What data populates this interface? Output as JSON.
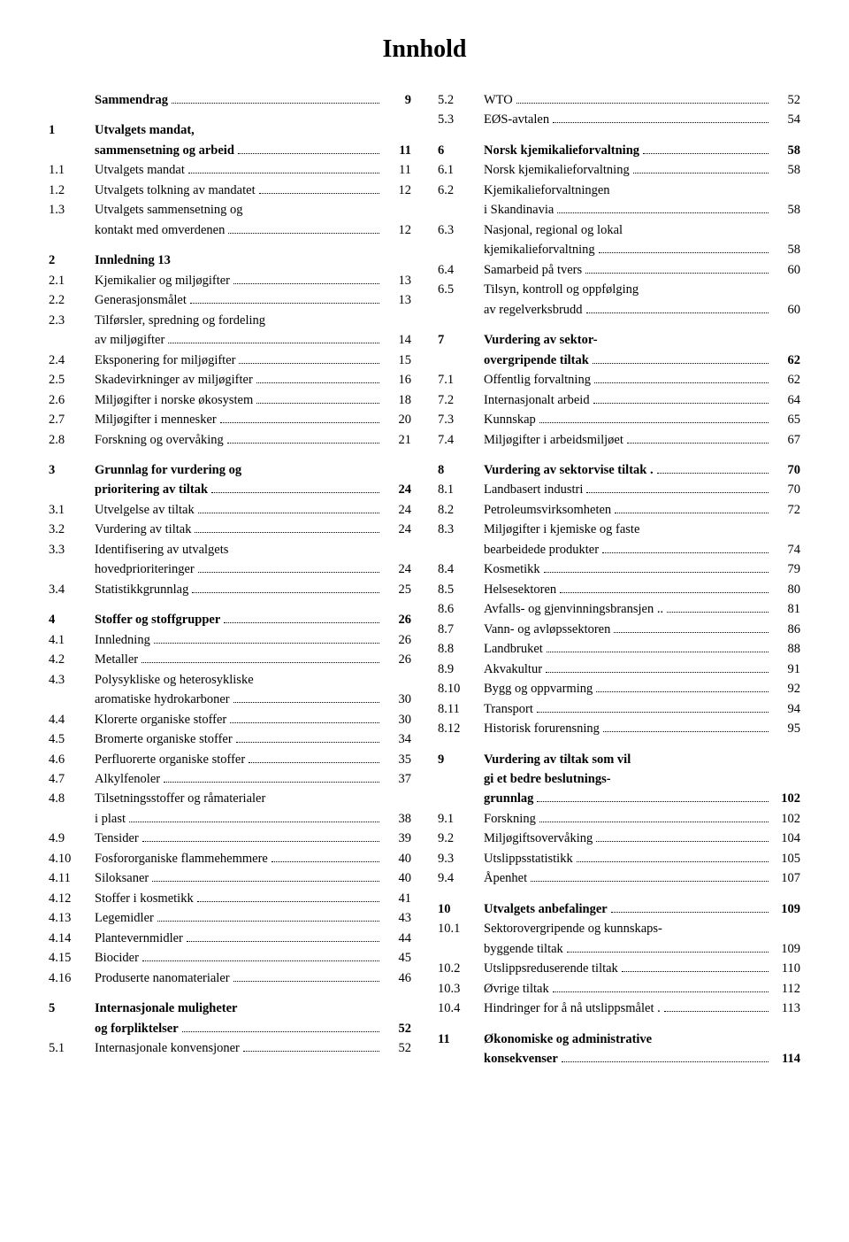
{
  "title": "Innhold",
  "left": [
    {
      "type": "row",
      "bold": true,
      "num": "",
      "label": "Sammendrag",
      "page": "9"
    },
    {
      "type": "gap"
    },
    {
      "type": "row",
      "bold": true,
      "num": "1",
      "label": "Utvalgets mandat,",
      "page": ""
    },
    {
      "type": "row",
      "bold": true,
      "num": "",
      "label": "sammensetning og arbeid",
      "page": "11"
    },
    {
      "type": "row",
      "num": "1.1",
      "label": "Utvalgets mandat",
      "page": "11"
    },
    {
      "type": "row",
      "num": "1.2",
      "label": "Utvalgets tolkning av mandatet",
      "page": "12"
    },
    {
      "type": "row",
      "num": "1.3",
      "label": "Utvalgets sammensetning og",
      "page": ""
    },
    {
      "type": "row",
      "num": "",
      "label": "kontakt med omverdenen",
      "page": "12"
    },
    {
      "type": "gap"
    },
    {
      "type": "row",
      "bold": true,
      "num": "2",
      "label": "Innledning 13",
      "page": "",
      "nodots": true
    },
    {
      "type": "row",
      "num": "2.1",
      "label": "Kjemikalier og miljøgifter",
      "page": "13"
    },
    {
      "type": "row",
      "num": "2.2",
      "label": "Generasjonsmålet",
      "page": "13"
    },
    {
      "type": "row",
      "num": "2.3",
      "label": "Tilførsler, spredning og fordeling",
      "page": ""
    },
    {
      "type": "row",
      "num": "",
      "label": "av miljøgifter",
      "page": "14"
    },
    {
      "type": "row",
      "num": "2.4",
      "label": "Eksponering for miljøgifter",
      "page": "15"
    },
    {
      "type": "row",
      "num": "2.5",
      "label": "Skadevirkninger av miljøgifter",
      "page": "16"
    },
    {
      "type": "row",
      "num": "2.6",
      "label": "Miljøgifter i norske økosystem",
      "page": "18"
    },
    {
      "type": "row",
      "num": "2.7",
      "label": "Miljøgifter i mennesker",
      "page": "20"
    },
    {
      "type": "row",
      "num": "2.8",
      "label": "Forskning og overvåking",
      "page": "21"
    },
    {
      "type": "gap"
    },
    {
      "type": "row",
      "bold": true,
      "num": "3",
      "label": "Grunnlag for vurdering og",
      "page": ""
    },
    {
      "type": "row",
      "bold": true,
      "num": "",
      "label": "prioritering av tiltak",
      "page": "24"
    },
    {
      "type": "row",
      "num": "3.1",
      "label": "Utvelgelse av tiltak",
      "page": "24"
    },
    {
      "type": "row",
      "num": "3.2",
      "label": "Vurdering av tiltak",
      "page": "24"
    },
    {
      "type": "row",
      "num": "3.3",
      "label": "Identifisering av utvalgets",
      "page": ""
    },
    {
      "type": "row",
      "num": "",
      "label": "hovedprioriteringer",
      "page": "24"
    },
    {
      "type": "row",
      "num": "3.4",
      "label": "Statistikkgrunnlag",
      "page": "25"
    },
    {
      "type": "gap"
    },
    {
      "type": "row",
      "bold": true,
      "num": "4",
      "label": "Stoffer og stoffgrupper",
      "page": "26"
    },
    {
      "type": "row",
      "num": "4.1",
      "label": "Innledning",
      "page": "26"
    },
    {
      "type": "row",
      "num": "4.2",
      "label": "Metaller",
      "page": "26"
    },
    {
      "type": "row",
      "num": "4.3",
      "label": "Polysykliske og heterosykliske",
      "page": ""
    },
    {
      "type": "row",
      "num": "",
      "label": "aromatiske hydrokarboner",
      "page": "30"
    },
    {
      "type": "row",
      "num": "4.4",
      "label": "Klorerte organiske stoffer",
      "page": "30"
    },
    {
      "type": "row",
      "num": "4.5",
      "label": "Bromerte organiske stoffer",
      "page": "34"
    },
    {
      "type": "row",
      "num": "4.6",
      "label": "Perfluorerte organiske stoffer",
      "page": "35"
    },
    {
      "type": "row",
      "num": "4.7",
      "label": "Alkylfenoler",
      "page": "37"
    },
    {
      "type": "row",
      "num": "4.8",
      "label": "Tilsetningsstoffer og råmaterialer",
      "page": ""
    },
    {
      "type": "row",
      "num": "",
      "label": "i plast",
      "page": "38"
    },
    {
      "type": "row",
      "num": "4.9",
      "label": "Tensider",
      "page": "39"
    },
    {
      "type": "row",
      "num": "4.10",
      "label": "Fosfororganiske flammehemmere",
      "page": "40"
    },
    {
      "type": "row",
      "num": "4.11",
      "label": "Siloksaner",
      "page": "40"
    },
    {
      "type": "row",
      "num": "4.12",
      "label": "Stoffer i kosmetikk",
      "page": "41"
    },
    {
      "type": "row",
      "num": "4.13",
      "label": "Legemidler",
      "page": "43"
    },
    {
      "type": "row",
      "num": "4.14",
      "label": "Plantevernmidler",
      "page": "44"
    },
    {
      "type": "row",
      "num": "4.15",
      "label": "Biocider",
      "page": "45"
    },
    {
      "type": "row",
      "num": "4.16",
      "label": "Produserte nanomaterialer",
      "page": "46"
    },
    {
      "type": "gap"
    },
    {
      "type": "row",
      "bold": true,
      "num": "5",
      "label": "Internasjonale muligheter",
      "page": ""
    },
    {
      "type": "row",
      "bold": true,
      "num": "",
      "label": "og forpliktelser",
      "page": "52"
    },
    {
      "type": "row",
      "num": "5.1",
      "label": "Internasjonale konvensjoner",
      "page": "52"
    }
  ],
  "right": [
    {
      "type": "row",
      "num": "5.2",
      "label": "WTO",
      "page": "52"
    },
    {
      "type": "row",
      "num": "5.3",
      "label": "EØS-avtalen",
      "page": "54"
    },
    {
      "type": "gap"
    },
    {
      "type": "row",
      "bold": true,
      "num": "6",
      "label": "Norsk kjemikalieforvaltning",
      "page": "58"
    },
    {
      "type": "row",
      "num": "6.1",
      "label": "Norsk kjemikalieforvaltning",
      "page": "58"
    },
    {
      "type": "row",
      "num": "6.2",
      "label": "Kjemikalieforvaltningen",
      "page": ""
    },
    {
      "type": "row",
      "num": "",
      "label": "i Skandinavia",
      "page": "58"
    },
    {
      "type": "row",
      "num": "6.3",
      "label": "Nasjonal, regional og lokal",
      "page": ""
    },
    {
      "type": "row",
      "num": "",
      "label": "kjemikalieforvaltning",
      "page": "58"
    },
    {
      "type": "row",
      "num": "6.4",
      "label": "Samarbeid på tvers",
      "page": "60"
    },
    {
      "type": "row",
      "num": "6.5",
      "label": "Tilsyn, kontroll og oppfølging",
      "page": ""
    },
    {
      "type": "row",
      "num": "",
      "label": "av regelverksbrudd",
      "page": "60"
    },
    {
      "type": "gap"
    },
    {
      "type": "row",
      "bold": true,
      "num": "7",
      "label": "Vurdering av sektor-",
      "page": ""
    },
    {
      "type": "row",
      "bold": true,
      "num": "",
      "label": "overgripende tiltak",
      "page": "62"
    },
    {
      "type": "row",
      "num": "7.1",
      "label": "Offentlig forvaltning",
      "page": "62"
    },
    {
      "type": "row",
      "num": "7.2",
      "label": "Internasjonalt arbeid",
      "page": "64"
    },
    {
      "type": "row",
      "num": "7.3",
      "label": "Kunnskap",
      "page": "65"
    },
    {
      "type": "row",
      "num": "7.4",
      "label": "Miljøgifter i arbeidsmiljøet",
      "page": "67"
    },
    {
      "type": "gap"
    },
    {
      "type": "row",
      "bold": true,
      "num": "8",
      "label": "Vurdering av sektorvise tiltak .",
      "page": "70"
    },
    {
      "type": "row",
      "num": "8.1",
      "label": "Landbasert industri",
      "page": "70"
    },
    {
      "type": "row",
      "num": "8.2",
      "label": "Petroleumsvirksomheten",
      "page": "72"
    },
    {
      "type": "row",
      "num": "8.3",
      "label": "Miljøgifter i kjemiske og faste",
      "page": ""
    },
    {
      "type": "row",
      "num": "",
      "label": "bearbeidede produkter",
      "page": "74"
    },
    {
      "type": "row",
      "num": "8.4",
      "label": "Kosmetikk",
      "page": "79"
    },
    {
      "type": "row",
      "num": "8.5",
      "label": "Helsesektoren",
      "page": "80"
    },
    {
      "type": "row",
      "num": "8.6",
      "label": "Avfalls- og gjenvinningsbransjen ..",
      "page": "81"
    },
    {
      "type": "row",
      "num": "8.7",
      "label": "Vann- og avløpssektoren",
      "page": "86"
    },
    {
      "type": "row",
      "num": "8.8",
      "label": "Landbruket",
      "page": "88"
    },
    {
      "type": "row",
      "num": "8.9",
      "label": "Akvakultur",
      "page": "91"
    },
    {
      "type": "row",
      "num": "8.10",
      "label": "Bygg og oppvarming",
      "page": "92"
    },
    {
      "type": "row",
      "num": "8.11",
      "label": "Transport",
      "page": "94"
    },
    {
      "type": "row",
      "num": "8.12",
      "label": "Historisk forurensning",
      "page": "95"
    },
    {
      "type": "gap"
    },
    {
      "type": "row",
      "bold": true,
      "num": "9",
      "label": "Vurdering av tiltak som vil",
      "page": ""
    },
    {
      "type": "row",
      "bold": true,
      "num": "",
      "label": "gi et bedre beslutnings-",
      "page": ""
    },
    {
      "type": "row",
      "bold": true,
      "num": "",
      "label": "grunnlag",
      "page": "102"
    },
    {
      "type": "row",
      "num": "9.1",
      "label": "Forskning",
      "page": "102"
    },
    {
      "type": "row",
      "num": "9.2",
      "label": "Miljøgiftsovervåking",
      "page": "104"
    },
    {
      "type": "row",
      "num": "9.3",
      "label": "Utslippsstatistikk",
      "page": "105"
    },
    {
      "type": "row",
      "num": "9.4",
      "label": "Åpenhet",
      "page": "107"
    },
    {
      "type": "gap"
    },
    {
      "type": "row",
      "bold": true,
      "num": "10",
      "label": "Utvalgets anbefalinger",
      "page": "109"
    },
    {
      "type": "row",
      "num": "10.1",
      "label": "Sektorovergripende og kunnskaps-",
      "page": ""
    },
    {
      "type": "row",
      "num": "",
      "label": "byggende tiltak",
      "page": "109"
    },
    {
      "type": "row",
      "num": "10.2",
      "label": "Utslippsreduserende tiltak",
      "page": "110"
    },
    {
      "type": "row",
      "num": "10.3",
      "label": "Øvrige tiltak",
      "page": "112"
    },
    {
      "type": "row",
      "num": "10.4",
      "label": "Hindringer for å nå utslippsmålet .",
      "page": "113"
    },
    {
      "type": "gap"
    },
    {
      "type": "row",
      "bold": true,
      "num": "11",
      "label": "Økonomiske og administrative",
      "page": ""
    },
    {
      "type": "row",
      "bold": true,
      "num": "",
      "label": "konsekvenser",
      "page": "114"
    }
  ]
}
